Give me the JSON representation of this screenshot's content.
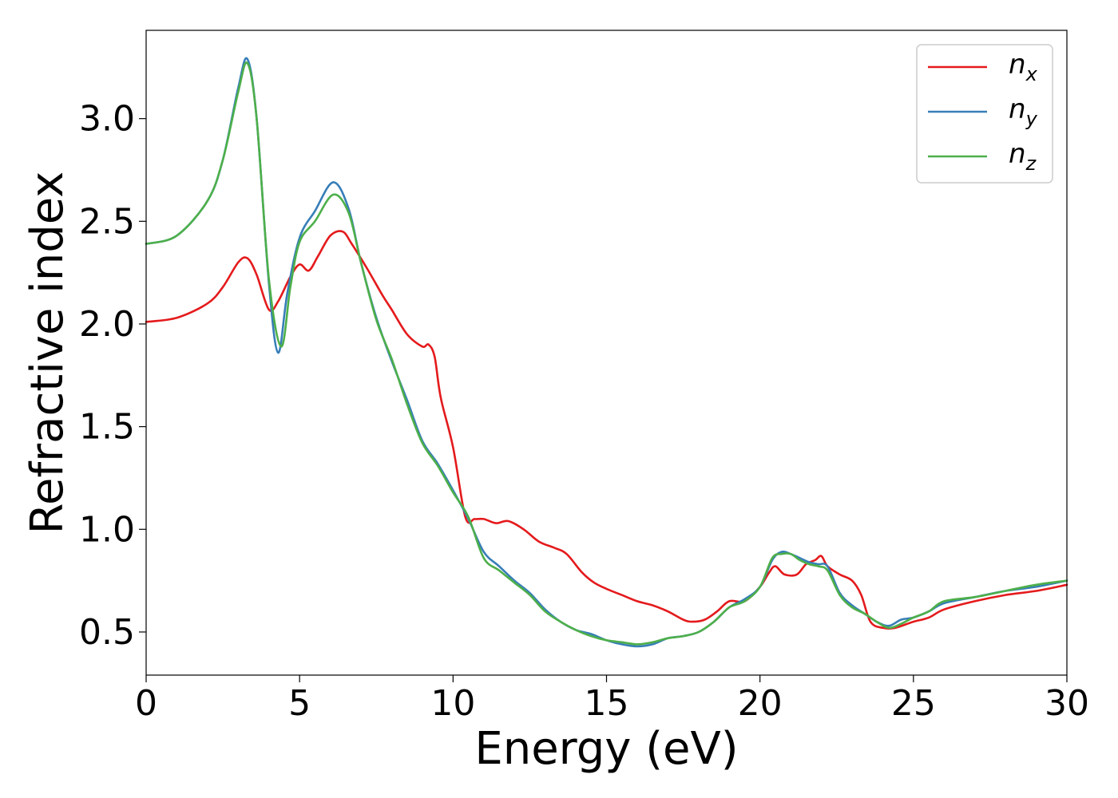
{
  "chart_data": {
    "type": "line",
    "xlabel": "Energy (eV)",
    "ylabel": "Refractive index",
    "xlim": [
      0,
      30
    ],
    "ylim": [
      0.29,
      3.43
    ],
    "xticks": [
      0,
      5,
      10,
      15,
      20,
      25,
      30
    ],
    "xtick_labels": [
      "0",
      "5",
      "10",
      "15",
      "20",
      "25",
      "30"
    ],
    "yticks": [
      0.5,
      1.0,
      1.5,
      2.0,
      2.5,
      3.0
    ],
    "ytick_labels": [
      "0.5",
      "1.0",
      "1.5",
      "2.0",
      "2.5",
      "3.0"
    ],
    "grid": false,
    "legend_position": "top-right",
    "series": [
      {
        "name": "n_x",
        "label_base": "n",
        "label_sub": "x",
        "color": "#e41a1c",
        "x": [
          0,
          1,
          2,
          2.5,
          3.0,
          3.3,
          3.6,
          4.0,
          4.3,
          4.7,
          5.0,
          5.3,
          5.6,
          6.0,
          6.4,
          6.7,
          7.2,
          7.7,
          8.0,
          8.5,
          9.0,
          9.2,
          9.4,
          9.6,
          10.0,
          10.4,
          10.7,
          11.0,
          11.4,
          11.8,
          12.3,
          12.8,
          13.3,
          13.7,
          14.2,
          14.6,
          15.0,
          15.5,
          16.0,
          16.5,
          17.0,
          17.5,
          17.8,
          18.2,
          18.6,
          19.0,
          19.5,
          20.0,
          20.3,
          20.5,
          20.8,
          21.2,
          21.5,
          21.8,
          22.0,
          22.2,
          22.6,
          23.0,
          23.3,
          23.6,
          24.0,
          24.4,
          25.0,
          25.5,
          26.0,
          27.0,
          28.0,
          29.0,
          30.0
        ],
        "values": [
          2.01,
          2.03,
          2.1,
          2.18,
          2.3,
          2.32,
          2.24,
          2.07,
          2.11,
          2.23,
          2.29,
          2.26,
          2.33,
          2.43,
          2.45,
          2.39,
          2.27,
          2.14,
          2.07,
          1.95,
          1.89,
          1.9,
          1.84,
          1.64,
          1.4,
          1.06,
          1.05,
          1.05,
          1.03,
          1.04,
          1.0,
          0.94,
          0.91,
          0.88,
          0.79,
          0.74,
          0.71,
          0.68,
          0.65,
          0.63,
          0.6,
          0.56,
          0.55,
          0.56,
          0.6,
          0.65,
          0.65,
          0.72,
          0.79,
          0.82,
          0.78,
          0.78,
          0.83,
          0.85,
          0.87,
          0.82,
          0.78,
          0.75,
          0.68,
          0.55,
          0.52,
          0.52,
          0.55,
          0.57,
          0.61,
          0.65,
          0.68,
          0.7,
          0.73
        ]
      },
      {
        "name": "n_y",
        "label_base": "n",
        "label_sub": "y",
        "color": "#377eb8",
        "x": [
          0,
          1,
          2,
          2.5,
          3.0,
          3.3,
          3.6,
          4.0,
          4.3,
          4.6,
          5.0,
          5.5,
          6.1,
          6.6,
          7.0,
          7.5,
          8.0,
          8.5,
          9.0,
          9.5,
          10.0,
          10.5,
          11.0,
          11.5,
          12.0,
          12.5,
          13.0,
          13.5,
          14.0,
          14.5,
          15.0,
          15.5,
          16.0,
          16.5,
          17.0,
          17.5,
          18.0,
          18.5,
          19.0,
          19.5,
          20.0,
          20.4,
          20.7,
          21.0,
          21.3,
          21.6,
          21.9,
          22.2,
          22.6,
          23.0,
          23.4,
          23.8,
          24.2,
          24.6,
          25.0,
          25.5,
          26.0,
          27.0,
          28.0,
          29.0,
          30.0
        ],
        "values": [
          2.39,
          2.43,
          2.6,
          2.8,
          3.15,
          3.29,
          3.0,
          2.2,
          1.86,
          2.15,
          2.42,
          2.55,
          2.69,
          2.56,
          2.3,
          2.03,
          1.82,
          1.63,
          1.43,
          1.32,
          1.19,
          1.05,
          0.89,
          0.82,
          0.75,
          0.69,
          0.61,
          0.55,
          0.51,
          0.49,
          0.46,
          0.44,
          0.43,
          0.44,
          0.47,
          0.48,
          0.5,
          0.55,
          0.62,
          0.66,
          0.72,
          0.85,
          0.89,
          0.88,
          0.86,
          0.84,
          0.83,
          0.82,
          0.69,
          0.63,
          0.59,
          0.55,
          0.53,
          0.56,
          0.57,
          0.6,
          0.64,
          0.67,
          0.7,
          0.72,
          0.75
        ]
      },
      {
        "name": "n_z",
        "label_base": "n",
        "label_sub": "z",
        "color": "#4daf4a",
        "x": [
          0,
          1,
          2,
          2.5,
          3.0,
          3.3,
          3.6,
          4.0,
          4.4,
          4.7,
          5.0,
          5.5,
          6.1,
          6.6,
          7.0,
          7.5,
          8.0,
          8.5,
          9.0,
          9.5,
          10.0,
          10.5,
          11.0,
          11.5,
          12.0,
          12.5,
          13.0,
          13.5,
          14.0,
          14.5,
          15.0,
          15.5,
          16.0,
          16.5,
          17.0,
          17.5,
          18.0,
          18.5,
          19.0,
          19.5,
          20.0,
          20.4,
          20.7,
          21.0,
          21.3,
          21.6,
          21.9,
          22.2,
          22.6,
          23.0,
          23.4,
          23.8,
          24.2,
          24.6,
          25.0,
          25.5,
          26.0,
          27.0,
          28.0,
          29.0,
          30.0
        ],
        "values": [
          2.39,
          2.43,
          2.6,
          2.8,
          3.13,
          3.27,
          3.0,
          2.22,
          1.89,
          2.18,
          2.4,
          2.5,
          2.63,
          2.54,
          2.3,
          2.02,
          1.83,
          1.61,
          1.42,
          1.31,
          1.18,
          1.06,
          0.86,
          0.8,
          0.74,
          0.68,
          0.6,
          0.55,
          0.51,
          0.48,
          0.46,
          0.45,
          0.44,
          0.45,
          0.47,
          0.48,
          0.5,
          0.55,
          0.62,
          0.65,
          0.72,
          0.86,
          0.88,
          0.88,
          0.85,
          0.83,
          0.82,
          0.8,
          0.68,
          0.62,
          0.59,
          0.55,
          0.52,
          0.54,
          0.57,
          0.6,
          0.65,
          0.67,
          0.7,
          0.73,
          0.75
        ]
      }
    ]
  }
}
